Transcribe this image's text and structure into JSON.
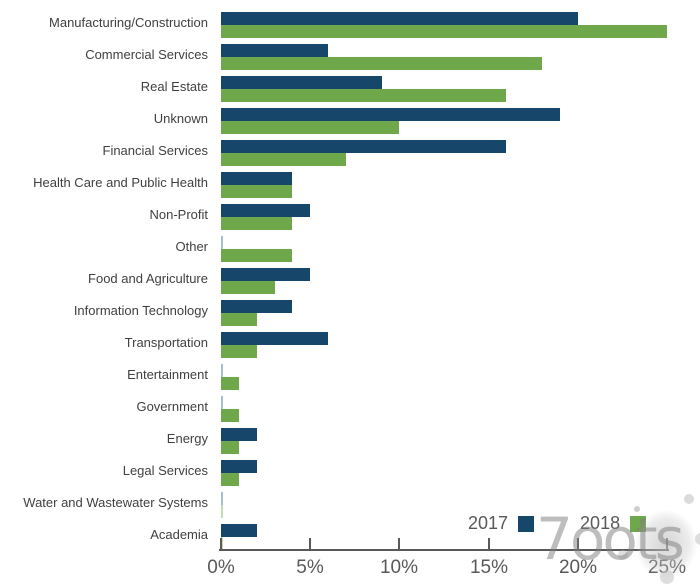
{
  "chart_data": {
    "type": "bar",
    "orientation": "horizontal",
    "title": "",
    "xlabel": "",
    "ylabel": "",
    "grid": false,
    "xlim": [
      0,
      25
    ],
    "x_tick_labels": [
      "0%",
      "5%",
      "10%",
      "15%",
      "20%",
      "25%"
    ],
    "x_tick_values": [
      0,
      5,
      10,
      15,
      20,
      25
    ],
    "legend_position": "bottom-right",
    "categories": [
      "Manufacturing/Construction",
      "Commercial Services",
      "Real Estate",
      "Unknown",
      "Financial Services",
      "Health Care and Public Health",
      "Non-Profit",
      "Other",
      "Food and Agriculture",
      "Information Technology",
      "Transportation",
      "Entertainment",
      "Government",
      "Energy",
      "Legal Services",
      "Water and Wastewater Systems",
      "Academia"
    ],
    "series": [
      {
        "name": "2017",
        "color": "#17466B",
        "sliver_color": "#A9BDD3",
        "values": [
          20,
          6,
          9,
          19,
          16,
          4,
          5,
          0.1,
          5,
          4,
          6,
          0.1,
          0.1,
          2,
          2,
          0.1,
          2
        ]
      },
      {
        "name": "2018",
        "color": "#6FA84A",
        "sliver_color": "#C3DCB0",
        "values": [
          25,
          18,
          16,
          10,
          7,
          4,
          4,
          4,
          3,
          2,
          2,
          1,
          1,
          1,
          1,
          0.1,
          0.1
        ]
      }
    ]
  },
  "colors": {
    "axis": "#595959",
    "tick_label": "#595959",
    "category_label": "#404040",
    "background": "#FFFFFF"
  },
  "watermark": {
    "text": "7oots"
  }
}
